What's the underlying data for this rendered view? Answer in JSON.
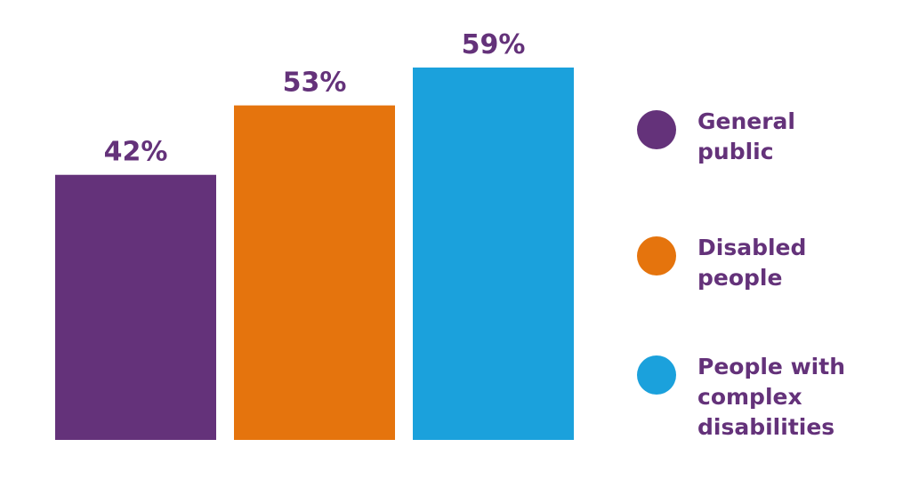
{
  "chart_data": {
    "type": "bar",
    "categories": [
      "General public",
      "Disabled people",
      "People with complex disabilities"
    ],
    "values": [
      42,
      53,
      59
    ],
    "value_labels": [
      "42%",
      "53%",
      "59%"
    ],
    "colors": [
      "#64327a",
      "#e5740d",
      "#1ba1dc"
    ],
    "label_color": "#64327a",
    "title": "",
    "xlabel": "",
    "ylabel": "",
    "ylim": [
      0,
      59
    ],
    "grid": false,
    "legend_position": "right"
  },
  "legend": {
    "items": [
      {
        "label": "General public",
        "color": "#64327a"
      },
      {
        "label": "Disabled people",
        "color": "#e5740d"
      },
      {
        "label": "People with complex disabilities",
        "color": "#1ba1dc"
      }
    ]
  }
}
